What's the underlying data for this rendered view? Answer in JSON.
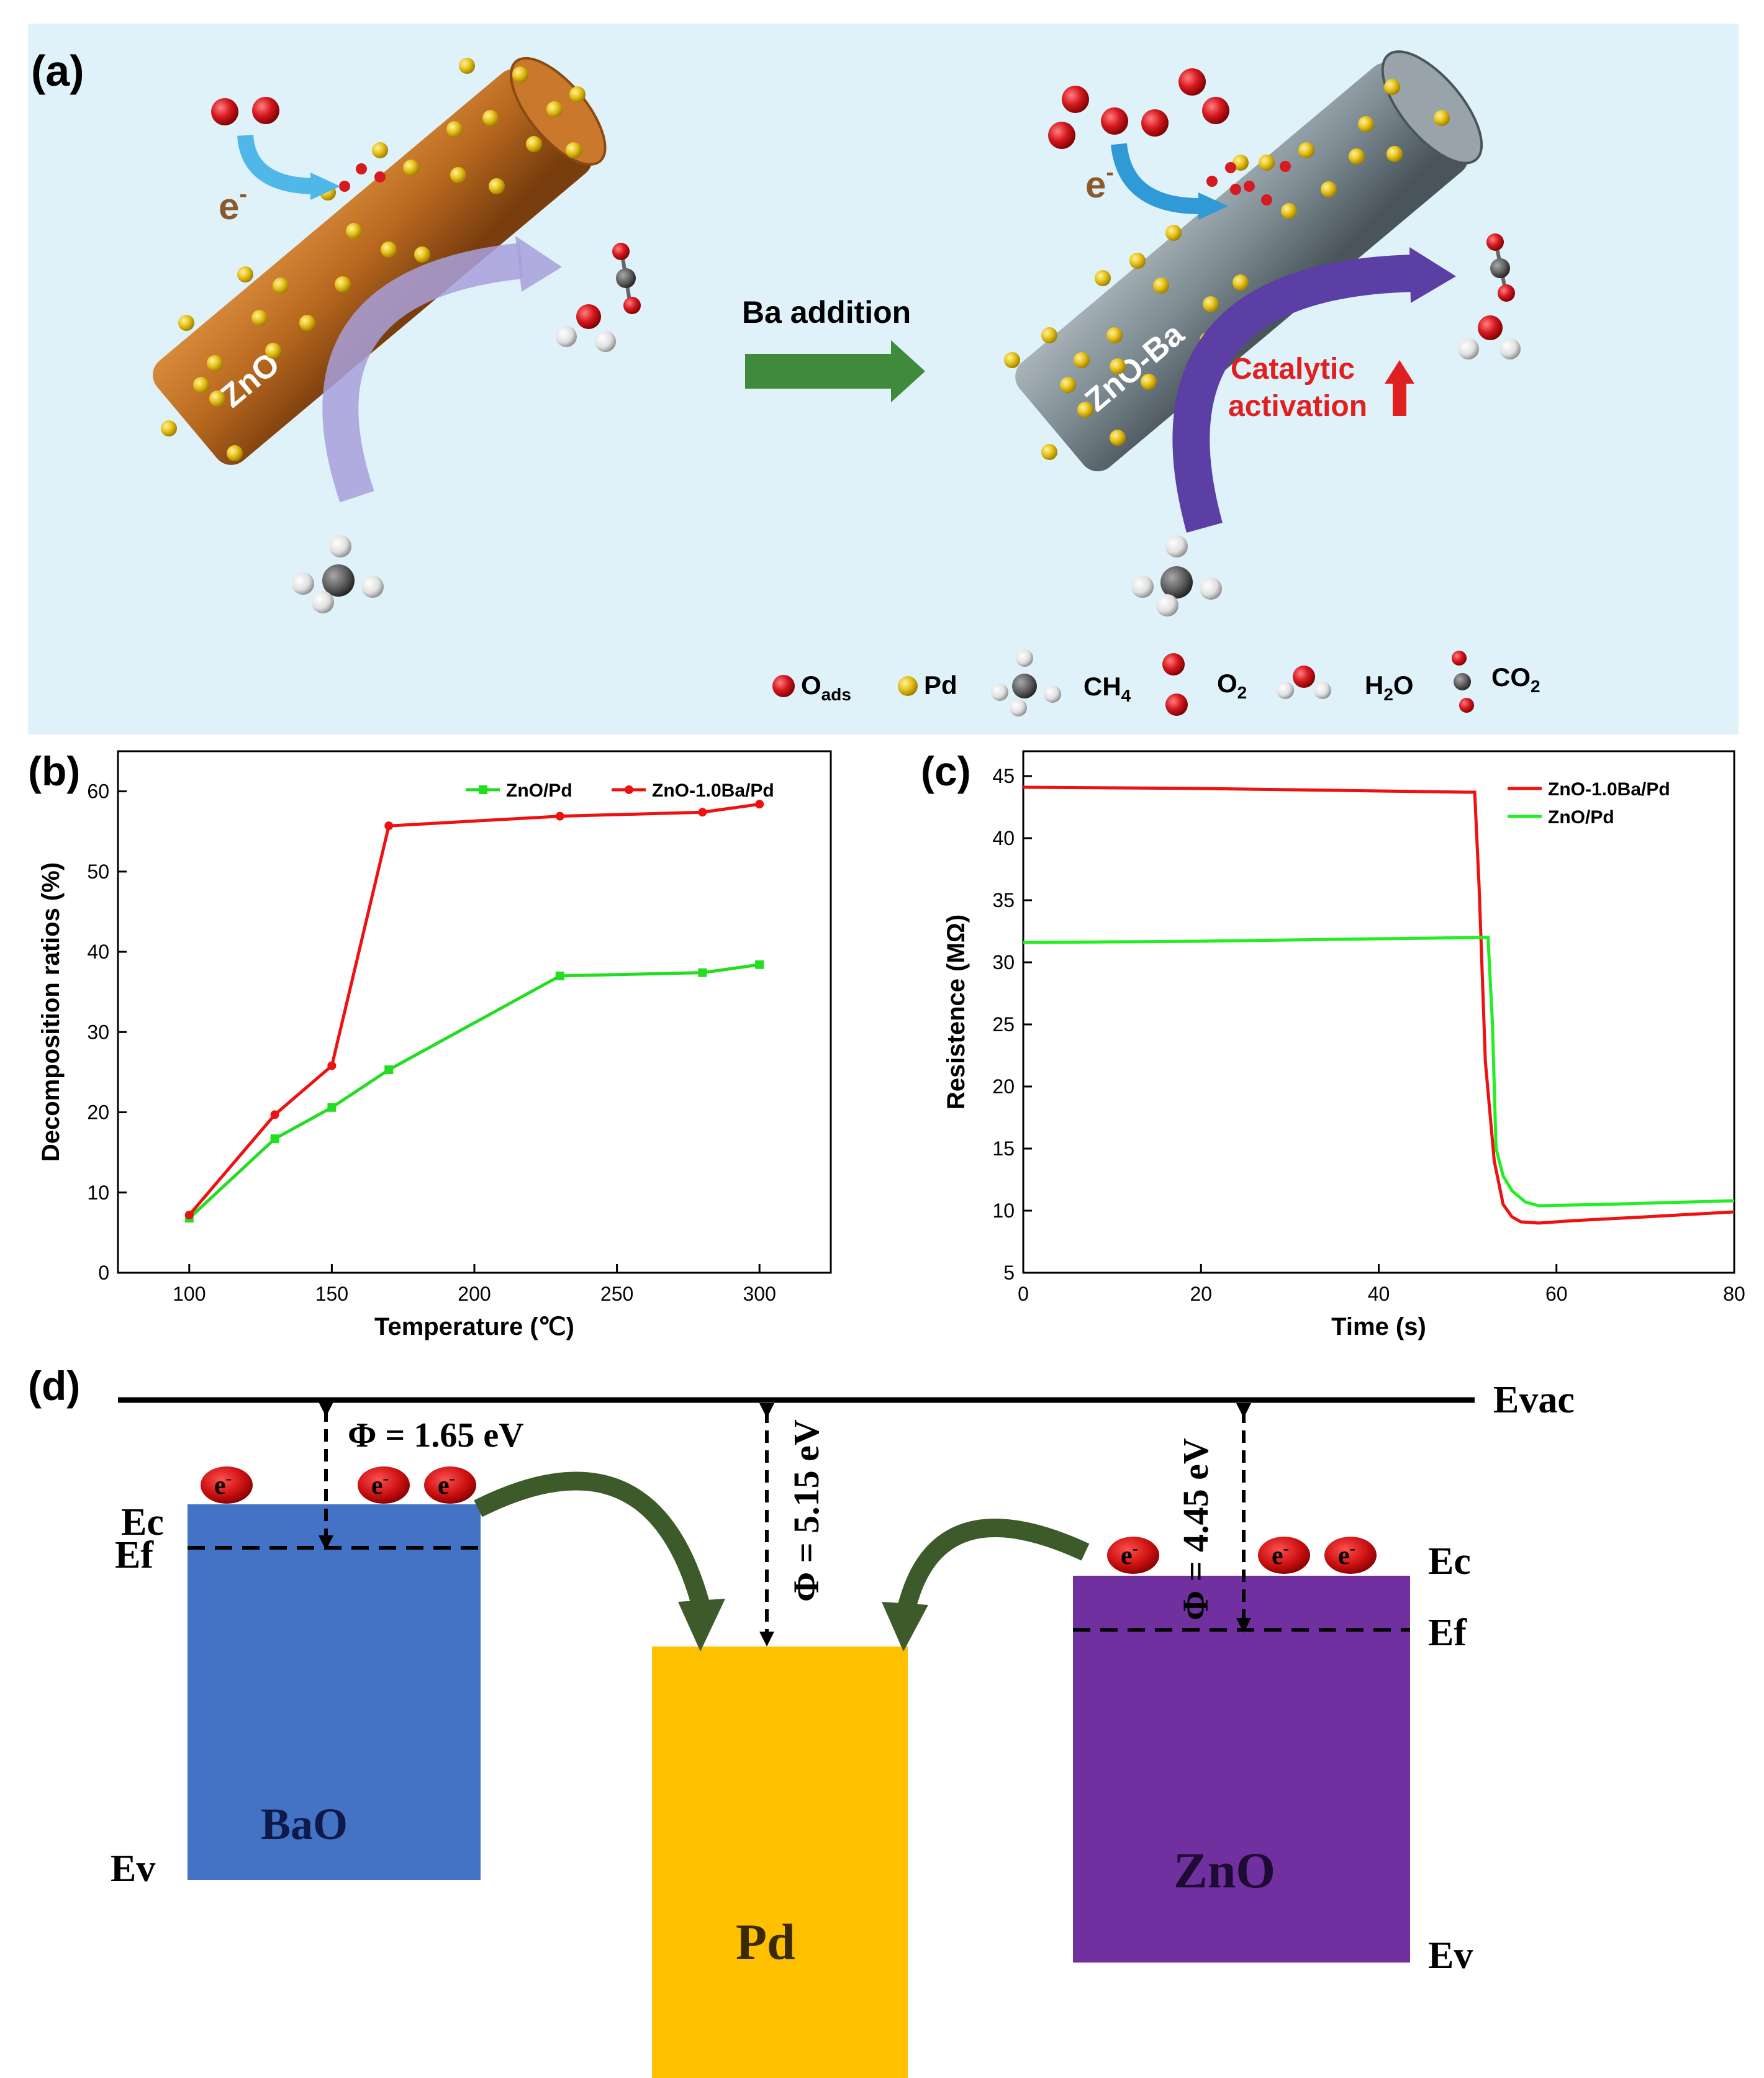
{
  "panel_a": {
    "label": "(a)",
    "rod_left_label": "ZnO",
    "rod_right_label": "ZnO-Ba",
    "arrow_label": "Ba addition",
    "electron": "e",
    "electron_sup": "-",
    "catalytic_line1": "Catalytic",
    "catalytic_line2": "activation",
    "legend": {
      "oads": "O",
      "oads_sub": "ads",
      "pd": "Pd",
      "ch4": "CH",
      "ch4_sub": "4",
      "o2": "O",
      "o2_sub": "2",
      "h2o_a": "H",
      "h2o_sub": "2",
      "h2o_b": "O",
      "co2": "CO",
      "co2_sub": "2"
    },
    "colors": {
      "background": "#dff2f9",
      "rod_left": "#b8691f",
      "rod_right": "#7d8b92",
      "pd": "#e8c21a",
      "oxygen": "#d71920",
      "green_arrow": "#3f8a3b",
      "catalytic_text": "#e02020"
    }
  },
  "chart_data": [
    {
      "id": "b",
      "panel_label": "(b)",
      "type": "line",
      "title": "",
      "xlabel": "Temperature (℃)",
      "ylabel": "Decomposition ratios (%)",
      "xlim": [
        75,
        325
      ],
      "ylim": [
        0,
        65
      ],
      "xticks": [
        100,
        150,
        200,
        250,
        300
      ],
      "yticks": [
        0,
        10,
        20,
        30,
        40,
        50,
        60
      ],
      "legend_position": "top-right",
      "series": [
        {
          "name": "ZnO/Pd",
          "color": "#22dd22",
          "marker": "square",
          "x": [
            100,
            130,
            150,
            170,
            230,
            280,
            300
          ],
          "y": [
            6.8,
            16.7,
            20.6,
            25.3,
            37.0,
            37.4,
            38.4
          ]
        },
        {
          "name": "ZnO-1.0Ba/Pd",
          "color": "#ee1111",
          "marker": "circle",
          "x": [
            100,
            130,
            150,
            170,
            230,
            280,
            300
          ],
          "y": [
            7.2,
            19.7,
            25.8,
            55.7,
            56.9,
            57.4,
            58.4
          ]
        }
      ]
    },
    {
      "id": "c",
      "panel_label": "(c)",
      "type": "line",
      "title": "",
      "xlabel": "Time (s)",
      "ylabel": "Resistence (MΩ)",
      "xlim": [
        0,
        80
      ],
      "ylim": [
        5,
        47
      ],
      "xticks": [
        0,
        20,
        40,
        60,
        80
      ],
      "yticks": [
        5,
        10,
        15,
        20,
        25,
        30,
        35,
        40,
        45
      ],
      "legend_position": "top-right",
      "series": [
        {
          "name": "ZnO-1.0Ba/Pd",
          "color": "#ee1111",
          "x": [
            0,
            20,
            40,
            50,
            50.8,
            51.3,
            52.0,
            53.0,
            54.0,
            55.0,
            56.0,
            58.0,
            62.0,
            70.0,
            80.0
          ],
          "y": [
            44.1,
            44.0,
            43.8,
            43.7,
            43.7,
            36.0,
            22.0,
            14.0,
            10.5,
            9.5,
            9.1,
            9.0,
            9.2,
            9.5,
            9.9
          ]
        },
        {
          "name": "ZnO/Pd",
          "color": "#22ee22",
          "x": [
            0,
            20,
            40,
            51.5,
            52.3,
            52.8,
            53.2,
            54.0,
            55.0,
            56.5,
            58.0,
            65.0,
            80.0
          ],
          "y": [
            31.6,
            31.7,
            31.9,
            32.0,
            32.0,
            25.0,
            15.0,
            12.8,
            11.6,
            10.7,
            10.4,
            10.5,
            10.8
          ]
        }
      ]
    }
  ],
  "panel_d": {
    "label": "(d)",
    "evac": "Evac",
    "ec": "Ec",
    "ef": "Ef",
    "ev": "Ev",
    "electron": "e",
    "electron_sup": "-",
    "bao": "BaO",
    "pd": "Pd",
    "zno": "ZnO",
    "phi_bao": "Φ = 1.65 eV",
    "phi_pd": "Φ = 5.15 eV",
    "phi_zno": "Φ = 4.45 eV",
    "colors": {
      "bao": "#4472c4",
      "pd": "#ffc000",
      "zno": "#7030a0",
      "electron": "#cc1111",
      "arrow": "#3d5a2a"
    }
  }
}
